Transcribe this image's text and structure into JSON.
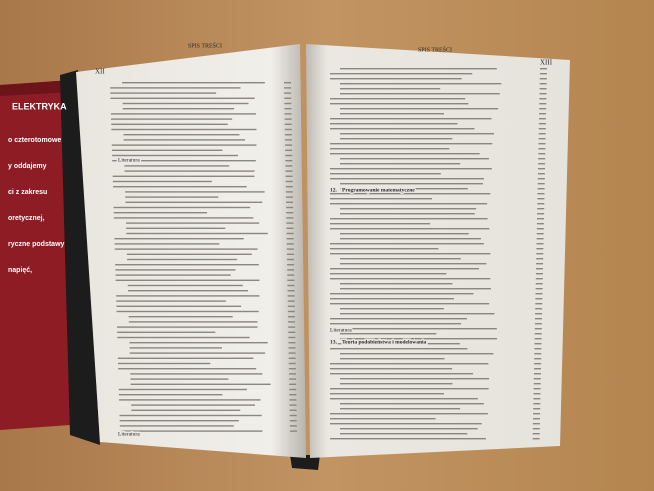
{
  "cover": {
    "title": "ELEKTRYKA",
    "lines": [
      "o czterotomowe",
      "y oddajemy",
      "ci z zakresu",
      "oretycznej,",
      "ryczne podstawy",
      "napięć,"
    ]
  },
  "left_page": {
    "header": "SPIS TREŚCI",
    "page_number": "XII",
    "entries": [
      "Literatura",
      "Literatura"
    ]
  },
  "right_page": {
    "header": "SPIS TREŚCI",
    "page_number": "XIII",
    "chapters": [
      {
        "number": "12.",
        "title": "Programowanie matematyczne"
      },
      {
        "number": "13.",
        "title": "Teoria podobieństwa i modelowania"
      }
    ],
    "entries": [
      "Literatura"
    ]
  }
}
